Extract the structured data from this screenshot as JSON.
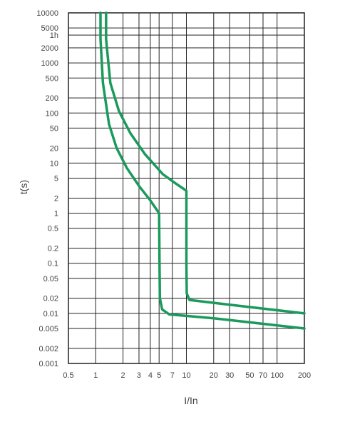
{
  "chart_data": {
    "type": "line",
    "title": "",
    "xlabel": "I/In",
    "ylabel": "t(s)",
    "x_scale": "log",
    "y_scale": "log",
    "xlim": [
      0.5,
      200
    ],
    "ylim": [
      0.001,
      10000
    ],
    "grid": true,
    "line_color": "#1a9a5c",
    "x_ticks": [
      {
        "value": 0.5,
        "label": "0.5"
      },
      {
        "value": 1,
        "label": "1"
      },
      {
        "value": 2,
        "label": "2"
      },
      {
        "value": 3,
        "label": "3"
      },
      {
        "value": 4,
        "label": "4"
      },
      {
        "value": 5,
        "label": "5"
      },
      {
        "value": 7,
        "label": "7"
      },
      {
        "value": 10,
        "label": "10"
      },
      {
        "value": 20,
        "label": "20"
      },
      {
        "value": 30,
        "label": "30"
      },
      {
        "value": 50,
        "label": "50"
      },
      {
        "value": 70,
        "label": "70"
      },
      {
        "value": 100,
        "label": "100"
      },
      {
        "value": 200,
        "label": "200"
      }
    ],
    "y_ticks": [
      {
        "value": 10000,
        "label": "10000"
      },
      {
        "value": 5000,
        "label": "5000"
      },
      {
        "value": 3600,
        "label": "1h"
      },
      {
        "value": 2000,
        "label": "2000"
      },
      {
        "value": 1000,
        "label": "1000"
      },
      {
        "value": 500,
        "label": "500"
      },
      {
        "value": 200,
        "label": "200"
      },
      {
        "value": 100,
        "label": "100"
      },
      {
        "value": 50,
        "label": "50"
      },
      {
        "value": 20,
        "label": "20"
      },
      {
        "value": 10,
        "label": "10"
      },
      {
        "value": 5,
        "label": "5"
      },
      {
        "value": 2,
        "label": "2"
      },
      {
        "value": 1,
        "label": "1"
      },
      {
        "value": 0.5,
        "label": "0.5"
      },
      {
        "value": 0.2,
        "label": "0.2"
      },
      {
        "value": 0.1,
        "label": "0.1"
      },
      {
        "value": 0.05,
        "label": "0.05"
      },
      {
        "value": 0.02,
        "label": "0.02"
      },
      {
        "value": 0.01,
        "label": "0.01"
      },
      {
        "value": 0.005,
        "label": "0.005"
      },
      {
        "value": 0.002,
        "label": "0.002"
      },
      {
        "value": 0.001,
        "label": "0.001"
      }
    ],
    "series": [
      {
        "points": [
          [
            1.13,
            10000
          ],
          [
            1.13,
            3000
          ],
          [
            1.2,
            400
          ],
          [
            1.4,
            60
          ],
          [
            1.7,
            20
          ],
          [
            2.2,
            8
          ],
          [
            3.0,
            3.5
          ],
          [
            4.0,
            1.8
          ],
          [
            5.0,
            1.0
          ],
          [
            5.05,
            0.1
          ],
          [
            5.1,
            0.02
          ],
          [
            5.4,
            0.012
          ],
          [
            6.5,
            0.0095
          ],
          [
            20,
            0.008
          ],
          [
            200,
            0.005
          ]
        ]
      },
      {
        "points": [
          [
            1.3,
            10000
          ],
          [
            1.3,
            3000
          ],
          [
            1.45,
            400
          ],
          [
            1.8,
            110
          ],
          [
            2.4,
            40
          ],
          [
            3.5,
            15
          ],
          [
            5.5,
            6
          ],
          [
            7.5,
            4
          ],
          [
            10,
            2.8
          ],
          [
            10,
            1
          ],
          [
            10,
            0.1
          ],
          [
            10.1,
            0.025
          ],
          [
            10.8,
            0.0185
          ],
          [
            40,
            0.014
          ],
          [
            200,
            0.01
          ]
        ]
      }
    ]
  }
}
